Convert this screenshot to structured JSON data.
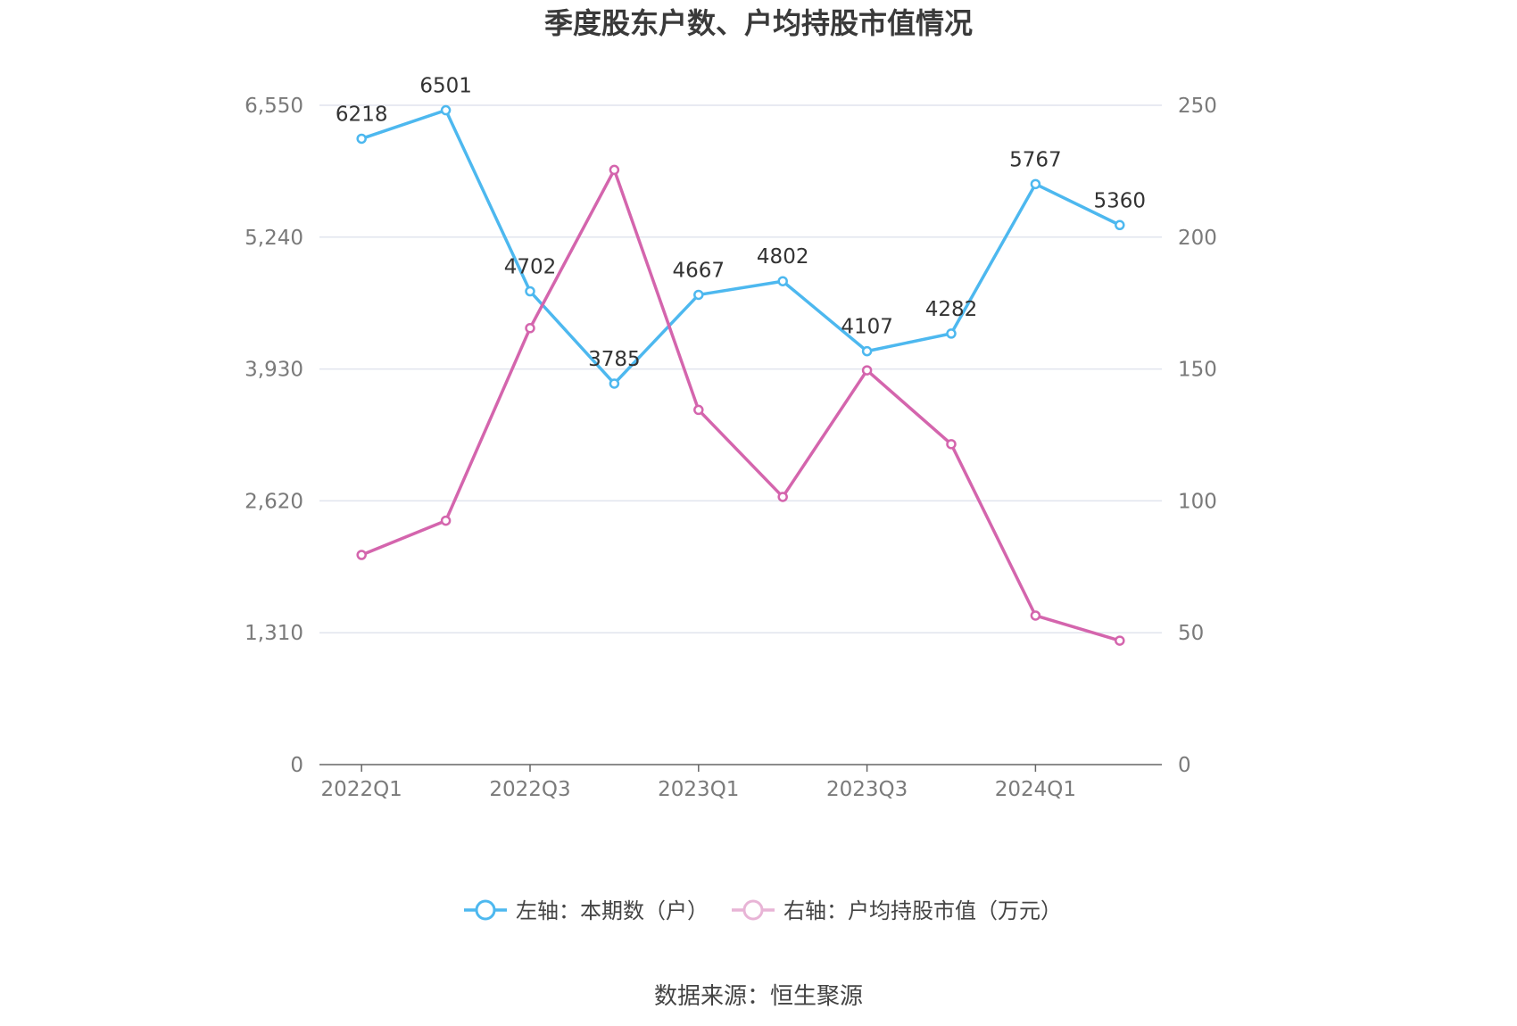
{
  "title": "季度股东户数、户均持股市值情况",
  "source": "数据来源：恒生聚源",
  "colors": {
    "left": "#4db8ef",
    "right": "#d465ad",
    "grid": "#e1e4ee",
    "axis": "#666666"
  },
  "chart_data": {
    "type": "line",
    "categories": [
      "2022Q1",
      "2022Q2",
      "2022Q3",
      "2022Q4",
      "2023Q1",
      "2023Q2",
      "2023Q3",
      "2023Q4",
      "2024Q1",
      "2024Q2"
    ],
    "x_tick_labels": [
      "2022Q1",
      "",
      "2022Q3",
      "",
      "2023Q1",
      "",
      "2023Q3",
      "",
      "2024Q1",
      ""
    ],
    "left_axis": {
      "ticks": [
        0,
        1310,
        2620,
        3930,
        5240,
        6550
      ],
      "tick_labels": [
        "0",
        "1,310",
        "2,620",
        "3,930",
        "5,240",
        "6,550"
      ],
      "range": [
        0,
        6550
      ]
    },
    "right_axis": {
      "ticks": [
        0,
        50,
        100,
        150,
        200,
        250
      ],
      "tick_labels": [
        "0",
        "50",
        "100",
        "150",
        "200",
        "250"
      ],
      "range": [
        0,
        250
      ]
    },
    "series": [
      {
        "name": "左轴：本期数（户）",
        "axis": "left",
        "values": [
          6218,
          6501,
          4702,
          3785,
          4667,
          4802,
          4107,
          4282,
          5767,
          5360
        ],
        "labels": [
          "6218",
          "6501",
          "4702",
          "3785",
          "4667",
          "4802",
          "4107",
          "4282",
          "5767",
          "5360"
        ]
      },
      {
        "name": "右轴：户均持股市值（万元）",
        "axis": "right",
        "values": [
          79.5,
          92.5,
          165.5,
          225.5,
          134.5,
          101.5,
          149.5,
          121.5,
          56.5,
          47.0
        ]
      }
    ],
    "grid": true,
    "legend_position": "bottom"
  }
}
